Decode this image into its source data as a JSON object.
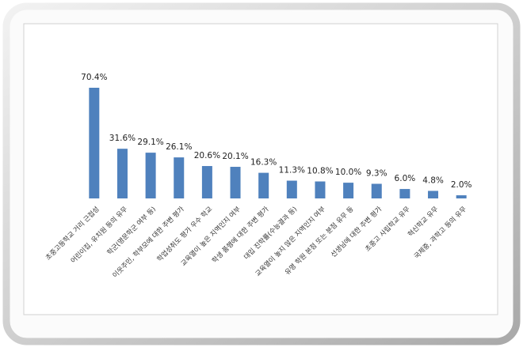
{
  "chart_data": {
    "type": "bar",
    "categories": [
      "초중고등학교 거리 근접성",
      "어린이집, 유치원 등의 유무",
      "학군(명문학군 여부 등)",
      "이웃주민, 학부모에 대한 주변 평가",
      "학업성취도 평가 우수 학교",
      "교육열이 높은 지역인지 여부",
      "학생 품행에 대한 주변 평가",
      "대입 진학률(수능결과 등)",
      "교육열이 높지 않은 지역인지 여부",
      "유명 학원 본점 또는 분점 유무 등",
      "선생님에 대한 주변 평가",
      "초중고 사립학교 유무",
      "혁신학교 유무",
      "국제중, 과학고 등의 유무"
    ],
    "values": [
      70.4,
      31.6,
      29.1,
      26.1,
      20.6,
      20.1,
      16.3,
      11.3,
      10.8,
      10.0,
      9.3,
      6.0,
      4.8,
      2.0
    ],
    "value_labels": [
      "70.4%",
      "31.6%",
      "29.1%",
      "26.1%",
      "20.6%",
      "20.1%",
      "16.3%",
      "11.3%",
      "10.8%",
      "10.0%",
      "9.3%",
      "6.0%",
      "4.8%",
      "2.0%"
    ],
    "color": "#4f81bd"
  }
}
